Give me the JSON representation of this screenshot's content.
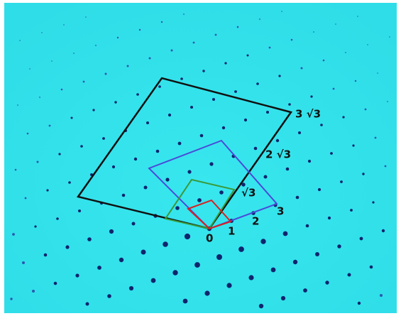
{
  "labels": [
    "0",
    "1",
    "2",
    "3",
    "√3",
    "2 √3",
    "3 √3"
  ]
}
